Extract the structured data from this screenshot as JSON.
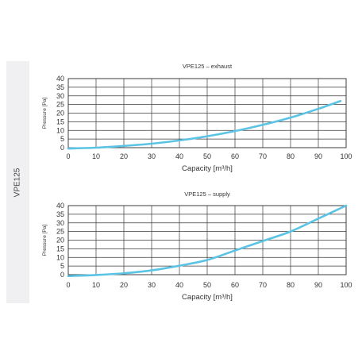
{
  "side_label": "VPE125",
  "colors": {
    "curve": "#5bc3e4",
    "grid": "#3a3a3a",
    "panel": "#f0f0f2"
  },
  "chart_data": [
    {
      "type": "line",
      "title": "VPE125 – exhaust",
      "xlabel": "Capacity [m³/h]",
      "ylabel": "Pressure [Pa]",
      "xlim": [
        0,
        100
      ],
      "ylim": [
        0,
        40
      ],
      "xticks": [
        "0",
        "10",
        "20",
        "30",
        "40",
        "50",
        "60",
        "70",
        "80",
        "90",
        "100"
      ],
      "yticks": [
        "0",
        "5",
        "10",
        "15",
        "20",
        "25",
        "30",
        "35",
        "40"
      ],
      "grid": true,
      "series": [
        {
          "x": [
            0,
            10,
            20,
            30,
            40,
            50,
            60,
            70,
            80,
            90,
            98
          ],
          "y": [
            -0.5,
            0,
            1,
            2.3,
            4.2,
            6.6,
            9.6,
            13.2,
            17.4,
            22.5,
            27
          ]
        }
      ]
    },
    {
      "type": "line",
      "title": "VPE125 – supply",
      "xlabel": "Capacity [m³/h]",
      "ylabel": "Pressure [Pa]",
      "xlim": [
        0,
        100
      ],
      "ylim": [
        0,
        40
      ],
      "xticks": [
        "0",
        "10",
        "20",
        "30",
        "40",
        "50",
        "60",
        "70",
        "80",
        "90",
        "100"
      ],
      "yticks": [
        "0",
        "5",
        "10",
        "15",
        "20",
        "25",
        "30",
        "35",
        "40"
      ],
      "grid": true,
      "series": [
        {
          "x": [
            0,
            10,
            20,
            30,
            40,
            50,
            60,
            70,
            80,
            90,
            100
          ],
          "y": [
            -0.8,
            -0.2,
            0.8,
            2.5,
            5.2,
            8.5,
            14,
            19.5,
            25,
            32.5,
            40
          ]
        }
      ]
    }
  ]
}
